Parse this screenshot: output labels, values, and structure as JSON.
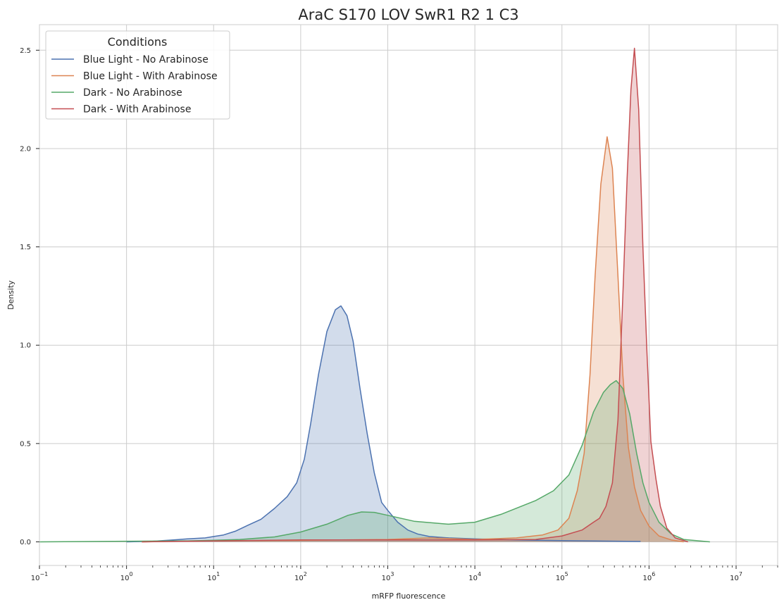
{
  "chart_data": {
    "type": "area",
    "title": "AraC S170 LOV SwR1 R2 1 C3",
    "xlabel": "mRFP fluorescence",
    "ylabel": "Density",
    "xscale": "log",
    "xlim": [
      0.1,
      30000000
    ],
    "ylim": [
      -0.12,
      2.63
    ],
    "x_ticks": [
      {
        "value": 0.1,
        "base": "10",
        "exp": "−1"
      },
      {
        "value": 1,
        "base": "10",
        "exp": "0"
      },
      {
        "value": 10,
        "base": "10",
        "exp": "1"
      },
      {
        "value": 100,
        "base": "10",
        "exp": "2"
      },
      {
        "value": 1000,
        "base": "10",
        "exp": "3"
      },
      {
        "value": 10000,
        "base": "10",
        "exp": "4"
      },
      {
        "value": 100000,
        "base": "10",
        "exp": "5"
      },
      {
        "value": 1000000,
        "base": "10",
        "exp": "6"
      },
      {
        "value": 10000000,
        "base": "10",
        "exp": "7"
      }
    ],
    "y_ticks": [
      {
        "value": 0.0,
        "label": "0.0"
      },
      {
        "value": 0.5,
        "label": "0.5"
      },
      {
        "value": 1.0,
        "label": "1.0"
      },
      {
        "value": 1.5,
        "label": "1.5"
      },
      {
        "value": 2.0,
        "label": "2.0"
      },
      {
        "value": 2.5,
        "label": "2.5"
      }
    ],
    "grid": true,
    "legend": {
      "title": "Conditions",
      "position": "top-left"
    },
    "series": [
      {
        "name": "Blue Light - No Arabinose",
        "color": "#4c72b0",
        "points": [
          [
            1,
            0.0
          ],
          [
            2,
            0.003
          ],
          [
            3,
            0.008
          ],
          [
            5,
            0.015
          ],
          [
            8,
            0.02
          ],
          [
            10,
            0.027
          ],
          [
            13,
            0.035
          ],
          [
            18,
            0.055
          ],
          [
            25,
            0.085
          ],
          [
            35,
            0.115
          ],
          [
            50,
            0.17
          ],
          [
            70,
            0.23
          ],
          [
            90,
            0.3
          ],
          [
            110,
            0.42
          ],
          [
            130,
            0.6
          ],
          [
            160,
            0.85
          ],
          [
            200,
            1.07
          ],
          [
            250,
            1.18
          ],
          [
            290,
            1.2
          ],
          [
            340,
            1.15
          ],
          [
            400,
            1.02
          ],
          [
            480,
            0.78
          ],
          [
            580,
            0.55
          ],
          [
            700,
            0.35
          ],
          [
            850,
            0.2
          ],
          [
            1000,
            0.16
          ],
          [
            1300,
            0.1
          ],
          [
            1700,
            0.06
          ],
          [
            2200,
            0.04
          ],
          [
            3000,
            0.027
          ],
          [
            5000,
            0.02
          ],
          [
            10000,
            0.015
          ],
          [
            30000,
            0.01
          ],
          [
            100000,
            0.006
          ],
          [
            300000,
            0.004
          ],
          [
            800000,
            0.002
          ]
        ]
      },
      {
        "name": "Blue Light - With Arabinose",
        "color": "#dd8452",
        "points": [
          [
            1.5,
            0.0
          ],
          [
            3,
            0.002
          ],
          [
            10,
            0.005
          ],
          [
            100,
            0.008
          ],
          [
            1000,
            0.012
          ],
          [
            3000,
            0.02
          ],
          [
            10000,
            0.012
          ],
          [
            30000,
            0.02
          ],
          [
            60000,
            0.035
          ],
          [
            90000,
            0.06
          ],
          [
            120000,
            0.12
          ],
          [
            150000,
            0.26
          ],
          [
            180000,
            0.45
          ],
          [
            210000,
            0.85
          ],
          [
            240000,
            1.35
          ],
          [
            280000,
            1.82
          ],
          [
            330000,
            2.06
          ],
          [
            380000,
            1.9
          ],
          [
            440000,
            1.35
          ],
          [
            500000,
            0.85
          ],
          [
            580000,
            0.48
          ],
          [
            680000,
            0.28
          ],
          [
            800000,
            0.16
          ],
          [
            1000000,
            0.08
          ],
          [
            1300000,
            0.03
          ],
          [
            1800000,
            0.01
          ],
          [
            2500000,
            0.0
          ]
        ]
      },
      {
        "name": "Dark - No Arabinose",
        "color": "#55a868",
        "points": [
          [
            0.1,
            0.0
          ],
          [
            1,
            0.003
          ],
          [
            5,
            0.005
          ],
          [
            10,
            0.008
          ],
          [
            20,
            0.012
          ],
          [
            50,
            0.025
          ],
          [
            100,
            0.05
          ],
          [
            200,
            0.09
          ],
          [
            350,
            0.135
          ],
          [
            500,
            0.152
          ],
          [
            700,
            0.15
          ],
          [
            1000,
            0.135
          ],
          [
            2000,
            0.105
          ],
          [
            5000,
            0.09
          ],
          [
            10000,
            0.1
          ],
          [
            20000,
            0.14
          ],
          [
            50000,
            0.21
          ],
          [
            80000,
            0.26
          ],
          [
            120000,
            0.34
          ],
          [
            170000,
            0.49
          ],
          [
            230000,
            0.66
          ],
          [
            300000,
            0.76
          ],
          [
            360000,
            0.8
          ],
          [
            420000,
            0.82
          ],
          [
            500000,
            0.78
          ],
          [
            600000,
            0.65
          ],
          [
            720000,
            0.45
          ],
          [
            850000,
            0.3
          ],
          [
            1000000,
            0.2
          ],
          [
            1300000,
            0.1
          ],
          [
            1800000,
            0.04
          ],
          [
            2500000,
            0.012
          ],
          [
            5000000,
            0.0
          ]
        ]
      },
      {
        "name": "Dark - With Arabinose",
        "color": "#c44e52",
        "points": [
          [
            1.5,
            0.0
          ],
          [
            10,
            0.005
          ],
          [
            100,
            0.01
          ],
          [
            1000,
            0.01
          ],
          [
            10000,
            0.01
          ],
          [
            50000,
            0.012
          ],
          [
            100000,
            0.03
          ],
          [
            170000,
            0.06
          ],
          [
            230000,
            0.1
          ],
          [
            270000,
            0.12
          ],
          [
            320000,
            0.18
          ],
          [
            380000,
            0.3
          ],
          [
            440000,
            0.62
          ],
          [
            500000,
            1.25
          ],
          [
            560000,
            1.85
          ],
          [
            620000,
            2.3
          ],
          [
            680000,
            2.51
          ],
          [
            760000,
            2.2
          ],
          [
            850000,
            1.5
          ],
          [
            950000,
            0.95
          ],
          [
            1050000,
            0.51
          ],
          [
            1200000,
            0.32
          ],
          [
            1350000,
            0.18
          ],
          [
            1600000,
            0.07
          ],
          [
            2000000,
            0.02
          ],
          [
            2800000,
            0.0
          ]
        ]
      }
    ]
  }
}
